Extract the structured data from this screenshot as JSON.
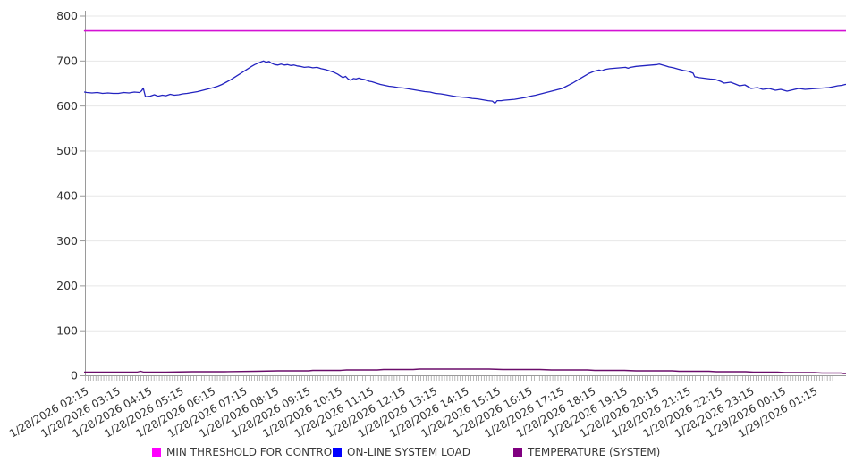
{
  "chart_data": {
    "type": "line",
    "title": "",
    "grid": true,
    "legend_position": "bottom",
    "background_color": "#ffffff",
    "grid_color": "#e7e7e7",
    "axis_color": "#9a9a9a",
    "label_color": "#333333",
    "y_axis": {
      "min": 0,
      "max": 800,
      "step": 100,
      "tick_labels": [
        "0",
        "100",
        "200",
        "300",
        "400",
        "500",
        "600",
        "700",
        "800"
      ]
    },
    "x_axis": {
      "t_unit": "minutes_after_first_tick",
      "first_tick_time": "1/28/2026 02:15",
      "label_interval_minutes": 60,
      "minor_tick_minutes": 5,
      "label_rotation_deg": -30,
      "labels": [
        "1/28/2026 02:15",
        "1/28/2026 03:15",
        "1/28/2026 04:15",
        "1/28/2026 05:15",
        "1/28/2026 06:15",
        "1/28/2026 07:15",
        "1/28/2026 08:15",
        "1/28/2026 09:15",
        "1/28/2026 10:15",
        "1/28/2026 11:15",
        "1/28/2026 12:15",
        "1/28/2026 13:15",
        "1/28/2026 14:15",
        "1/28/2026 15:15",
        "1/28/2026 16:15",
        "1/28/2026 17:15",
        "1/28/2026 18:15",
        "1/28/2026 19:15",
        "1/28/2026 20:15",
        "1/28/2026 21:15",
        "1/28/2026 22:15",
        "1/28/2026 23:15",
        "1/29/2026 00:15",
        "1/29/2026 01:15"
      ]
    },
    "series": [
      {
        "name": "MIN THRESHOLD FOR CONTROL",
        "line_color": "#d412d4",
        "swatch_color": "#ff00ff",
        "line_width": 1.6,
        "points": [
          [
            -4,
            767
          ],
          [
            1439,
            767
          ]
        ]
      },
      {
        "name": "ON-LINE SYSTEM LOAD",
        "line_color": "#2323c0",
        "swatch_color": "#0000ff",
        "line_width": 1.3,
        "points": [
          [
            -4,
            631
          ],
          [
            0,
            630
          ],
          [
            10,
            629
          ],
          [
            20,
            630
          ],
          [
            30,
            628
          ],
          [
            40,
            629
          ],
          [
            50,
            628
          ],
          [
            60,
            628
          ],
          [
            70,
            630
          ],
          [
            80,
            629
          ],
          [
            90,
            631
          ],
          [
            100,
            630
          ],
          [
            104,
            634
          ],
          [
            107,
            640
          ],
          [
            111,
            621
          ],
          [
            120,
            622
          ],
          [
            128,
            625
          ],
          [
            135,
            622
          ],
          [
            143,
            624
          ],
          [
            150,
            623
          ],
          [
            158,
            626
          ],
          [
            166,
            624
          ],
          [
            174,
            625
          ],
          [
            182,
            627
          ],
          [
            190,
            628
          ],
          [
            200,
            630
          ],
          [
            210,
            632
          ],
          [
            220,
            635
          ],
          [
            230,
            638
          ],
          [
            240,
            641
          ],
          [
            248,
            644
          ],
          [
            256,
            648
          ],
          [
            264,
            653
          ],
          [
            272,
            658
          ],
          [
            280,
            664
          ],
          [
            288,
            670
          ],
          [
            296,
            676
          ],
          [
            304,
            682
          ],
          [
            312,
            688
          ],
          [
            318,
            692
          ],
          [
            324,
            695
          ],
          [
            330,
            698
          ],
          [
            335,
            700
          ],
          [
            340,
            697
          ],
          [
            345,
            699
          ],
          [
            350,
            695
          ],
          [
            356,
            692
          ],
          [
            362,
            691
          ],
          [
            368,
            693
          ],
          [
            374,
            691
          ],
          [
            380,
            692
          ],
          [
            386,
            690
          ],
          [
            392,
            691
          ],
          [
            398,
            689
          ],
          [
            404,
            688
          ],
          [
            412,
            686
          ],
          [
            420,
            687
          ],
          [
            428,
            685
          ],
          [
            436,
            686
          ],
          [
            444,
            683
          ],
          [
            452,
            681
          ],
          [
            460,
            678
          ],
          [
            468,
            675
          ],
          [
            475,
            671
          ],
          [
            480,
            667
          ],
          [
            485,
            663
          ],
          [
            490,
            666
          ],
          [
            495,
            660
          ],
          [
            500,
            657
          ],
          [
            505,
            661
          ],
          [
            510,
            660
          ],
          [
            515,
            662
          ],
          [
            520,
            660
          ],
          [
            525,
            659
          ],
          [
            530,
            657
          ],
          [
            535,
            655
          ],
          [
            540,
            654
          ],
          [
            548,
            651
          ],
          [
            556,
            648
          ],
          [
            564,
            646
          ],
          [
            572,
            644
          ],
          [
            580,
            643
          ],
          [
            590,
            641
          ],
          [
            600,
            640
          ],
          [
            610,
            638
          ],
          [
            620,
            636
          ],
          [
            630,
            634
          ],
          [
            640,
            632
          ],
          [
            650,
            631
          ],
          [
            660,
            628
          ],
          [
            670,
            627
          ],
          [
            680,
            625
          ],
          [
            690,
            623
          ],
          [
            700,
            621
          ],
          [
            710,
            620
          ],
          [
            720,
            619
          ],
          [
            730,
            617
          ],
          [
            740,
            616
          ],
          [
            750,
            614
          ],
          [
            760,
            612
          ],
          [
            768,
            611
          ],
          [
            773,
            606
          ],
          [
            777,
            612
          ],
          [
            785,
            612
          ],
          [
            790,
            613
          ],
          [
            800,
            614
          ],
          [
            810,
            615
          ],
          [
            820,
            617
          ],
          [
            830,
            619
          ],
          [
            840,
            622
          ],
          [
            850,
            624
          ],
          [
            860,
            627
          ],
          [
            870,
            630
          ],
          [
            880,
            633
          ],
          [
            890,
            636
          ],
          [
            900,
            639
          ],
          [
            910,
            645
          ],
          [
            920,
            651
          ],
          [
            930,
            658
          ],
          [
            940,
            665
          ],
          [
            950,
            672
          ],
          [
            960,
            677
          ],
          [
            970,
            680
          ],
          [
            975,
            678
          ],
          [
            980,
            681
          ],
          [
            990,
            683
          ],
          [
            1000,
            684
          ],
          [
            1010,
            685
          ],
          [
            1020,
            686
          ],
          [
            1025,
            684
          ],
          [
            1030,
            686
          ],
          [
            1040,
            688
          ],
          [
            1050,
            689
          ],
          [
            1060,
            690
          ],
          [
            1070,
            691
          ],
          [
            1080,
            692
          ],
          [
            1084,
            693
          ],
          [
            1090,
            691
          ],
          [
            1096,
            689
          ],
          [
            1102,
            687
          ],
          [
            1111,
            685
          ],
          [
            1120,
            682
          ],
          [
            1130,
            679
          ],
          [
            1140,
            677
          ],
          [
            1148,
            673
          ],
          [
            1151,
            665
          ],
          [
            1160,
            663
          ],
          [
            1173,
            661
          ],
          [
            1180,
            660
          ],
          [
            1190,
            659
          ],
          [
            1200,
            655
          ],
          [
            1207,
            651
          ],
          [
            1219,
            653
          ],
          [
            1228,
            649
          ],
          [
            1236,
            645
          ],
          [
            1246,
            647
          ],
          [
            1258,
            639
          ],
          [
            1270,
            641
          ],
          [
            1280,
            637
          ],
          [
            1292,
            639
          ],
          [
            1304,
            635
          ],
          [
            1314,
            637
          ],
          [
            1326,
            633
          ],
          [
            1337,
            636
          ],
          [
            1348,
            639
          ],
          [
            1360,
            637
          ],
          [
            1371,
            638
          ],
          [
            1382,
            639
          ],
          [
            1394,
            640
          ],
          [
            1405,
            641
          ],
          [
            1414,
            643
          ],
          [
            1422,
            645
          ],
          [
            1430,
            646
          ],
          [
            1436,
            648
          ],
          [
            1439,
            648
          ]
        ]
      },
      {
        "name": "TEMPERATURE (SYSTEM)",
        "line_color": "#6a0c6a",
        "swatch_color": "#800080",
        "line_width": 1.4,
        "points": [
          [
            -4,
            8
          ],
          [
            30,
            8
          ],
          [
            60,
            8
          ],
          [
            95,
            8
          ],
          [
            102,
            10
          ],
          [
            108,
            8
          ],
          [
            150,
            8
          ],
          [
            200,
            9
          ],
          [
            260,
            9
          ],
          [
            320,
            10
          ],
          [
            362,
            11
          ],
          [
            420,
            11
          ],
          [
            428,
            12
          ],
          [
            480,
            12
          ],
          [
            492,
            13
          ],
          [
            550,
            13
          ],
          [
            562,
            14
          ],
          [
            618,
            14
          ],
          [
            630,
            15
          ],
          [
            700,
            15
          ],
          [
            762,
            15
          ],
          [
            788,
            14
          ],
          [
            858,
            14
          ],
          [
            880,
            13
          ],
          [
            948,
            13
          ],
          [
            962,
            12
          ],
          [
            1018,
            12
          ],
          [
            1040,
            11
          ],
          [
            1108,
            11
          ],
          [
            1122,
            10
          ],
          [
            1178,
            10
          ],
          [
            1192,
            9
          ],
          [
            1248,
            9
          ],
          [
            1262,
            8
          ],
          [
            1308,
            8
          ],
          [
            1322,
            7
          ],
          [
            1378,
            7
          ],
          [
            1392,
            6
          ],
          [
            1428,
            6
          ],
          [
            1433,
            5
          ],
          [
            1439,
            5
          ]
        ]
      }
    ]
  },
  "legend": {
    "items": [
      {
        "label": "MIN THRESHOLD FOR CONTROL"
      },
      {
        "label": "ON-LINE SYSTEM LOAD"
      },
      {
        "label": "TEMPERATURE (SYSTEM)"
      }
    ]
  }
}
